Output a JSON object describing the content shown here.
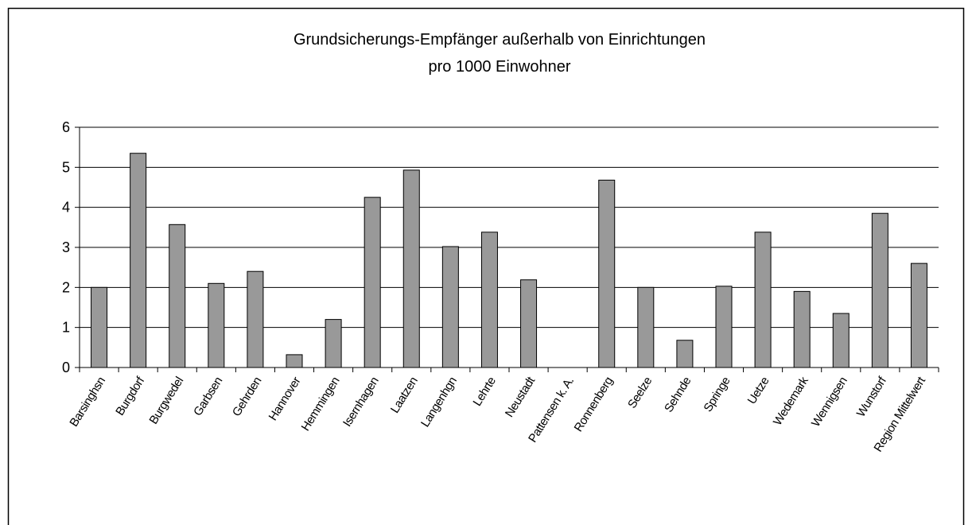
{
  "chart_data": {
    "type": "bar",
    "title": [
      "Grundsicherungs-Empfänger außerhalb von Einrichtungen",
      "pro 1000 Einwohner"
    ],
    "categories": [
      "Barsinghsn",
      "Burgdorf",
      "Burgwedel",
      "Garbsen",
      "Gehrden",
      "Hannover",
      "Hemmingen",
      "Isernhagen",
      "Laatzen",
      "Langenhgn",
      "Lehrte",
      "Neustadt",
      "Pattensen k. A.",
      "Ronnenberg",
      "Seelze",
      "Sehnde",
      "Springe",
      "Uetze",
      "Wedemark",
      "Wennigsen",
      "Wunstorf",
      "Region Mittelwert"
    ],
    "values": [
      2.0,
      5.35,
      3.57,
      2.1,
      2.4,
      0.32,
      1.2,
      4.25,
      4.93,
      3.02,
      3.38,
      2.19,
      null,
      4.68,
      2.0,
      0.68,
      2.03,
      3.38,
      1.9,
      1.35,
      3.85,
      2.6
    ],
    "color": "#999999",
    "ylim": [
      0,
      6
    ],
    "yticks": [
      0,
      1,
      2,
      3,
      4,
      5,
      6
    ],
    "grid": true
  }
}
